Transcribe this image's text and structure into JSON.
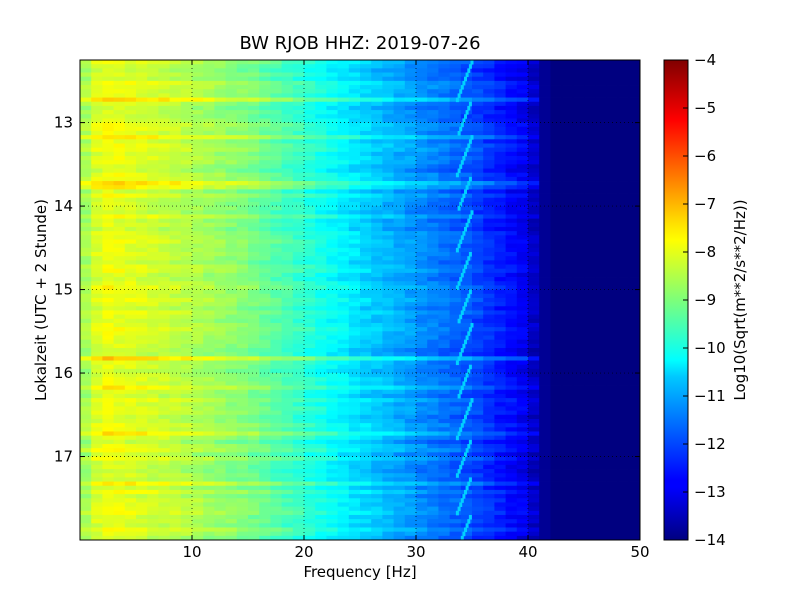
{
  "chart_data": {
    "type": "heatmap",
    "title": "BW RJOB HHZ: 2019-07-26",
    "xlabel": "Frequency [Hz]",
    "ylabel": "Lokalzeit (UTC + 2 Stunde)",
    "xlim": [
      0,
      50
    ],
    "ylim": [
      12.25,
      18.0
    ],
    "y_inverted": true,
    "x_ticks": [
      10,
      20,
      30,
      40,
      50
    ],
    "x_tick_labels": [
      "10",
      "20",
      "30",
      "40",
      "50"
    ],
    "y_ticks": [
      13,
      14,
      15,
      16,
      17
    ],
    "y_tick_labels": [
      "13",
      "14",
      "15",
      "16",
      "17"
    ],
    "grid": true,
    "colormap": "jet",
    "colorbar": {
      "label": "Log10(Sqrt(m**2/s**2/Hz))",
      "range": [
        -14,
        -4
      ],
      "ticks": [
        -4,
        -5,
        -6,
        -7,
        -8,
        -9,
        -10,
        -11,
        -12,
        -13,
        -14
      ],
      "tick_labels": [
        "−4",
        "−5",
        "−6",
        "−7",
        "−8",
        "−9",
        "−10",
        "−11",
        "−12",
        "−13",
        "−14"
      ]
    },
    "spectrum_profile": {
      "frequency_hz": [
        0.5,
        2,
        5,
        10,
        15,
        20,
        25,
        30,
        35,
        38,
        40,
        41,
        42,
        45,
        50
      ],
      "level": [
        -8.6,
        -7.9,
        -8.1,
        -8.5,
        -9.0,
        -9.8,
        -10.6,
        -11.3,
        -12.0,
        -12.6,
        -13.0,
        -13.6,
        -14,
        -14,
        -14
      ]
    },
    "narrow_line": {
      "frequency_hz_range": [
        33.7,
        35.0
      ],
      "level": -10.7
    }
  }
}
